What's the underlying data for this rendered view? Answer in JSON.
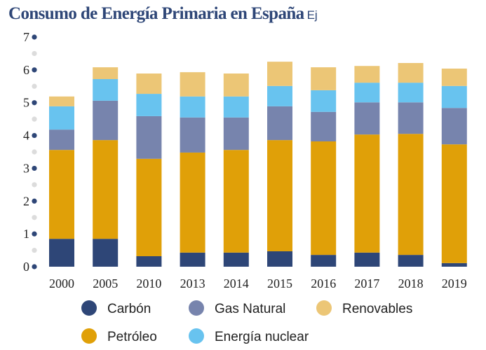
{
  "chart_data": {
    "type": "bar",
    "stacked": true,
    "title": "Consumo de Energía Primaria en España",
    "unit": "Ej",
    "categories": [
      "2000",
      "2005",
      "2010",
      "2013",
      "2014",
      "2015",
      "2016",
      "2017",
      "2018",
      "2019"
    ],
    "ylim": [
      0,
      7
    ],
    "yticks": [
      "0",
      "1",
      "2",
      "3",
      "4",
      "5",
      "6",
      "7"
    ],
    "grid": false,
    "legend_position": "bottom",
    "series": [
      {
        "name": "Carbón",
        "color": "#2e4677",
        "values": [
          0.85,
          0.85,
          0.32,
          0.43,
          0.43,
          0.47,
          0.36,
          0.43,
          0.36,
          0.11
        ]
      },
      {
        "name": "Petróleo",
        "color": "#e0a008",
        "values": [
          2.71,
          3.01,
          2.97,
          3.05,
          3.13,
          3.39,
          3.46,
          3.6,
          3.69,
          3.62
        ]
      },
      {
        "name": "Gas Natural",
        "color": "#7784ad",
        "values": [
          0.62,
          1.2,
          1.3,
          1.07,
          0.99,
          1.03,
          0.9,
          0.98,
          0.96,
          1.11
        ]
      },
      {
        "name": "Energía nuclear",
        "color": "#68c3ef",
        "values": [
          0.71,
          0.66,
          0.68,
          0.64,
          0.64,
          0.62,
          0.66,
          0.6,
          0.6,
          0.67
        ]
      },
      {
        "name": "Renovables",
        "color": "#ecc676",
        "values": [
          0.3,
          0.36,
          0.62,
          0.74,
          0.7,
          0.74,
          0.7,
          0.51,
          0.6,
          0.53
        ]
      }
    ]
  }
}
